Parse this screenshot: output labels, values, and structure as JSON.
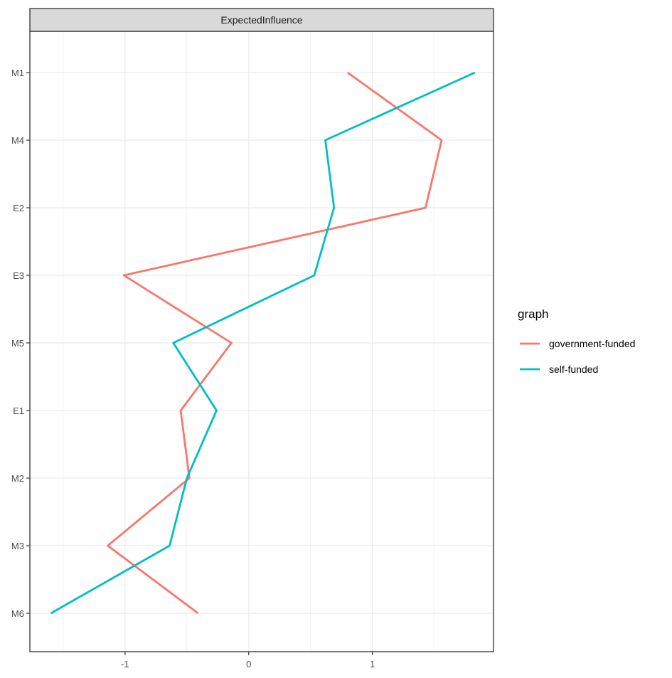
{
  "chart_data": {
    "type": "line",
    "facet_title": "ExpectedInfluence",
    "title": "",
    "xlabel": "",
    "ylabel": "",
    "categories": [
      "M1",
      "M4",
      "E2",
      "E3",
      "M5",
      "E1",
      "M2",
      "M3",
      "M6"
    ],
    "xlim": [
      -1.77,
      1.98
    ],
    "x_ticks": [
      -1,
      0,
      1
    ],
    "x_tick_labels": [
      "-1",
      "0",
      "1"
    ],
    "grid": true,
    "legend_title": "graph",
    "legend_position": "right",
    "series": [
      {
        "name": "government-funded",
        "color": "#F8766D",
        "values": [
          0.8,
          1.56,
          1.43,
          -1.01,
          -0.14,
          -0.55,
          -0.48,
          -1.14,
          -0.41
        ]
      },
      {
        "name": "self-funded",
        "color": "#00BFC4",
        "values": [
          1.83,
          0.62,
          0.69,
          0.53,
          -0.61,
          -0.26,
          -0.5,
          -0.64,
          -1.6
        ]
      }
    ]
  }
}
